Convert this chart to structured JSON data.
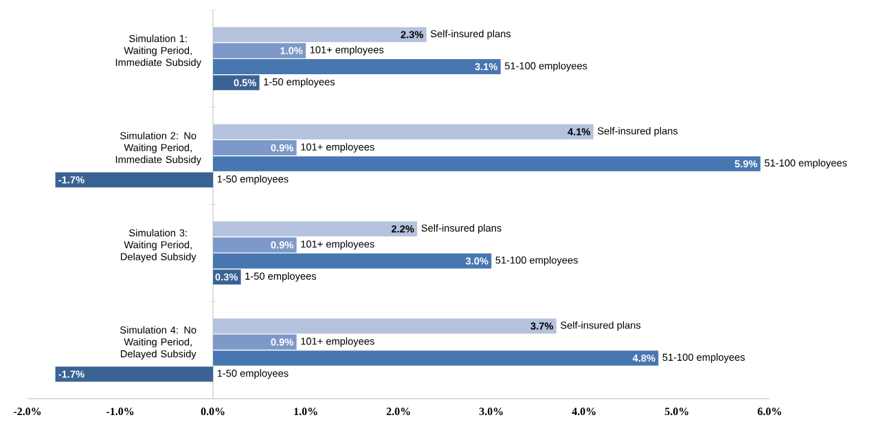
{
  "chart_data": {
    "type": "bar",
    "orientation": "horizontal",
    "categories": [
      "Simulation 1: Waiting Period, Immediate Subsidy",
      "Simulation 2: No Waiting Period, Immediate Subsidy",
      "Simulation 3: Waiting Period, Delayed Subsidy",
      "Simulation 4: No Waiting Period, Delayed Subsidy"
    ],
    "series": [
      {
        "name": "Self-insured plans",
        "color": "#b4c2de",
        "values": [
          2.3,
          4.1,
          2.2,
          3.7
        ],
        "value_labels": [
          "2.3%",
          "4.1%",
          "2.2%",
          "3.7%"
        ]
      },
      {
        "name": "101+ employees",
        "color": "#7d99c9",
        "values": [
          1.0,
          0.9,
          0.9,
          0.9
        ],
        "value_labels": [
          "1.0%",
          "0.9%",
          "0.9%",
          "0.9%"
        ]
      },
      {
        "name": "51-100 employees",
        "color": "#4876b0",
        "values": [
          3.1,
          5.9,
          3.0,
          4.8
        ],
        "value_labels": [
          "3.1%",
          "5.9%",
          "3.0%",
          "4.8%"
        ]
      },
      {
        "name": "1-50 employees",
        "color": "#3b6294",
        "values": [
          0.5,
          -1.7,
          0.3,
          -1.7
        ],
        "value_labels": [
          "0.5%",
          "-1.7%",
          "0.3%",
          "-1.7%"
        ]
      }
    ],
    "xlim": [
      -2,
      6
    ],
    "xticks": [
      {
        "value": -2,
        "label": "-2.0%"
      },
      {
        "value": -1,
        "label": "-1.0%"
      },
      {
        "value": 0,
        "label": "0.0%"
      },
      {
        "value": 1,
        "label": "1.0%"
      },
      {
        "value": 2,
        "label": "2.0%"
      },
      {
        "value": 3,
        "label": "3.0%"
      },
      {
        "value": 4,
        "label": "4.0%"
      },
      {
        "value": 5,
        "label": "5.0%"
      },
      {
        "value": 6,
        "label": "6.0%"
      }
    ]
  }
}
